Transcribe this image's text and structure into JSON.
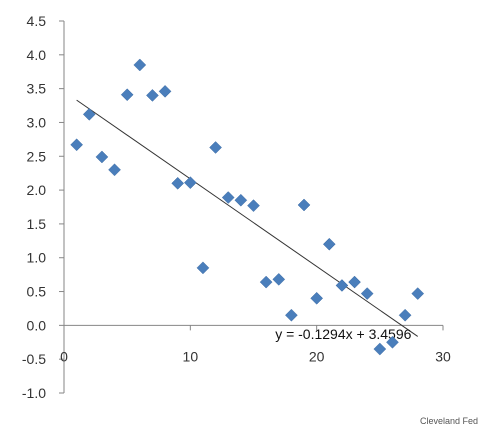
{
  "chart_data": {
    "type": "scatter",
    "title": "",
    "xlabel": "",
    "ylabel": "",
    "xlim": [
      0,
      30
    ],
    "ylim": [
      -1.0,
      4.5
    ],
    "x_ticks": [
      "0",
      "10",
      "20",
      "30"
    ],
    "y_ticks": [
      "4.5",
      "4.0",
      "3.5",
      "3.0",
      "2.5",
      "2.0",
      "1.5",
      "1.0",
      "0.5",
      "0.0",
      "-0.5",
      "-1.0"
    ],
    "grid": false,
    "legend": "none",
    "marker_color": "#4a7ebb",
    "trendline_color": "#333333",
    "points": [
      {
        "x": 1,
        "y": 2.67
      },
      {
        "x": 2,
        "y": 3.12
      },
      {
        "x": 3,
        "y": 2.49
      },
      {
        "x": 4,
        "y": 2.3
      },
      {
        "x": 5,
        "y": 3.41
      },
      {
        "x": 6,
        "y": 3.85
      },
      {
        "x": 7,
        "y": 3.4
      },
      {
        "x": 8,
        "y": 3.46
      },
      {
        "x": 9,
        "y": 2.1
      },
      {
        "x": 10,
        "y": 2.11
      },
      {
        "x": 11,
        "y": 0.85
      },
      {
        "x": 12,
        "y": 2.63
      },
      {
        "x": 13,
        "y": 1.89
      },
      {
        "x": 14,
        "y": 1.85
      },
      {
        "x": 15,
        "y": 1.77
      },
      {
        "x": 16,
        "y": 0.64
      },
      {
        "x": 17,
        "y": 0.68
      },
      {
        "x": 18,
        "y": 0.15
      },
      {
        "x": 19,
        "y": 1.78
      },
      {
        "x": 20,
        "y": 0.4
      },
      {
        "x": 21,
        "y": 1.2
      },
      {
        "x": 22,
        "y": 0.59
      },
      {
        "x": 23,
        "y": 0.64
      },
      {
        "x": 24,
        "y": 0.47
      },
      {
        "x": 25,
        "y": -0.35
      },
      {
        "x": 26,
        "y": -0.25
      },
      {
        "x": 27,
        "y": 0.15
      },
      {
        "x": 28,
        "y": 0.47
      }
    ],
    "trendline": {
      "slope": -0.1294,
      "intercept": 3.4596,
      "x_start": 1,
      "x_end": 28,
      "label": "y = -0.1294x + 3.4596"
    }
  },
  "credit": "Cleveland Fed"
}
